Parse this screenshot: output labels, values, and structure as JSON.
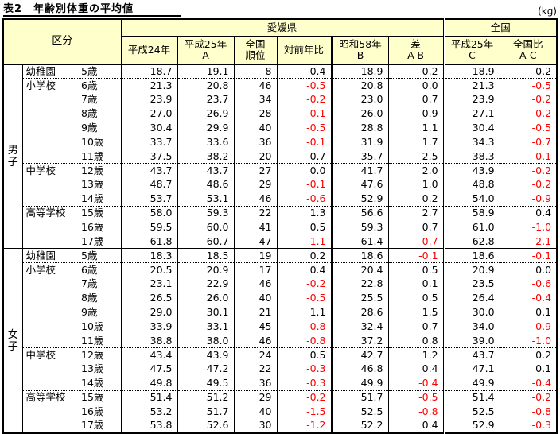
{
  "title": "表2　年齢別体重の平均値",
  "unit": "(kg)",
  "colors": {
    "header_bg": "#FFFFCC",
    "negative_value": "#FF0000",
    "border": "#000000"
  },
  "header": {
    "kubun": "区分",
    "ehime": "愛媛県",
    "zenkoku": "全国",
    "cols": [
      {
        "l1": "平成24年",
        "l2": ""
      },
      {
        "l1": "平成25年",
        "l2": "A"
      },
      {
        "l1": "全国",
        "l2": "順位"
      },
      {
        "l1": "対前年比",
        "l2": ""
      },
      {
        "l1": "昭和58年",
        "l2": "B"
      },
      {
        "l1": "差",
        "l2": "A-B"
      },
      {
        "l1": "平成25年",
        "l2": "C"
      },
      {
        "l1": "全国比",
        "l2": "A-C"
      }
    ]
  },
  "groups": [
    {
      "gender": "男子",
      "rows": [
        {
          "school": "幼稚園",
          "age": "5歳",
          "sep": false,
          "values": [
            "18.7",
            "19.1",
            "8",
            "0.4",
            "18.9",
            "0.2",
            "18.9",
            "0.2"
          ]
        },
        {
          "school": "小学校",
          "age": "6歳",
          "sep": true,
          "values": [
            "21.3",
            "20.8",
            "46",
            "-0.5",
            "20.8",
            "0.0",
            "21.3",
            "-0.5"
          ]
        },
        {
          "school": "",
          "age": "7歳",
          "sep": false,
          "values": [
            "23.9",
            "23.7",
            "34",
            "-0.2",
            "23.0",
            "0.7",
            "23.9",
            "-0.2"
          ]
        },
        {
          "school": "",
          "age": "8歳",
          "sep": false,
          "values": [
            "27.0",
            "26.9",
            "28",
            "-0.1",
            "26.0",
            "0.9",
            "27.1",
            "-0.2"
          ]
        },
        {
          "school": "",
          "age": "9歳",
          "sep": false,
          "values": [
            "30.4",
            "29.9",
            "40",
            "-0.5",
            "28.8",
            "1.1",
            "30.4",
            "-0.5"
          ]
        },
        {
          "school": "",
          "age": "10歳",
          "sep": false,
          "values": [
            "33.7",
            "33.6",
            "36",
            "-0.1",
            "31.9",
            "1.7",
            "34.3",
            "-0.7"
          ]
        },
        {
          "school": "",
          "age": "11歳",
          "sep": false,
          "values": [
            "37.5",
            "38.2",
            "20",
            "0.7",
            "35.7",
            "2.5",
            "38.3",
            "-0.1"
          ]
        },
        {
          "school": "中学校",
          "age": "12歳",
          "sep": true,
          "values": [
            "43.7",
            "43.7",
            "27",
            "0.0",
            "41.7",
            "2.0",
            "43.9",
            "-0.2"
          ]
        },
        {
          "school": "",
          "age": "13歳",
          "sep": false,
          "values": [
            "48.7",
            "48.6",
            "29",
            "-0.1",
            "47.6",
            "1.0",
            "48.8",
            "-0.2"
          ]
        },
        {
          "school": "",
          "age": "14歳",
          "sep": false,
          "values": [
            "53.7",
            "53.1",
            "46",
            "-0.6",
            "52.9",
            "0.2",
            "54.0",
            "-0.9"
          ]
        },
        {
          "school": "高等学校",
          "age": "15歳",
          "sep": true,
          "values": [
            "58.0",
            "59.3",
            "22",
            "1.3",
            "56.6",
            "2.7",
            "58.9",
            "0.4"
          ]
        },
        {
          "school": "",
          "age": "16歳",
          "sep": false,
          "values": [
            "59.5",
            "60.0",
            "41",
            "0.5",
            "59.3",
            "0.7",
            "61.0",
            "-1.0"
          ]
        },
        {
          "school": "",
          "age": "17歳",
          "sep": false,
          "values": [
            "61.8",
            "60.7",
            "47",
            "-1.1",
            "61.4",
            "-0.7",
            "62.8",
            "-2.1"
          ]
        }
      ]
    },
    {
      "gender": "女子",
      "rows": [
        {
          "school": "幼稚園",
          "age": "5歳",
          "sep": false,
          "values": [
            "18.3",
            "18.5",
            "19",
            "0.2",
            "18.6",
            "-0.1",
            "18.6",
            "-0.1"
          ]
        },
        {
          "school": "小学校",
          "age": "6歳",
          "sep": true,
          "values": [
            "20.5",
            "20.9",
            "17",
            "0.4",
            "20.4",
            "0.5",
            "20.9",
            "0.0"
          ]
        },
        {
          "school": "",
          "age": "7歳",
          "sep": false,
          "values": [
            "23.1",
            "22.9",
            "46",
            "-0.2",
            "22.8",
            "0.1",
            "23.5",
            "-0.6"
          ]
        },
        {
          "school": "",
          "age": "8歳",
          "sep": false,
          "values": [
            "26.5",
            "26.0",
            "40",
            "-0.5",
            "25.5",
            "0.5",
            "26.4",
            "-0.4"
          ]
        },
        {
          "school": "",
          "age": "9歳",
          "sep": false,
          "values": [
            "29.0",
            "30.1",
            "21",
            "1.1",
            "28.6",
            "1.5",
            "30.0",
            "0.1"
          ]
        },
        {
          "school": "",
          "age": "10歳",
          "sep": false,
          "values": [
            "33.9",
            "33.1",
            "45",
            "-0.8",
            "32.4",
            "0.7",
            "34.0",
            "-0.9"
          ]
        },
        {
          "school": "",
          "age": "11歳",
          "sep": false,
          "values": [
            "38.8",
            "38.0",
            "46",
            "-0.8",
            "37.2",
            "0.8",
            "39.0",
            "-1.0"
          ]
        },
        {
          "school": "中学校",
          "age": "12歳",
          "sep": true,
          "values": [
            "43.4",
            "43.9",
            "24",
            "0.5",
            "42.7",
            "1.2",
            "43.7",
            "0.2"
          ]
        },
        {
          "school": "",
          "age": "13歳",
          "sep": false,
          "values": [
            "47.5",
            "47.2",
            "22",
            "-0.3",
            "46.8",
            "0.4",
            "47.1",
            "0.1"
          ]
        },
        {
          "school": "",
          "age": "14歳",
          "sep": false,
          "values": [
            "49.8",
            "49.5",
            "36",
            "-0.3",
            "49.9",
            "-0.4",
            "49.9",
            "-0.4"
          ]
        },
        {
          "school": "高等学校",
          "age": "15歳",
          "sep": true,
          "values": [
            "51.4",
            "51.2",
            "29",
            "-0.2",
            "51.7",
            "-0.5",
            "51.4",
            "-0.2"
          ]
        },
        {
          "school": "",
          "age": "16歳",
          "sep": false,
          "values": [
            "53.2",
            "51.7",
            "40",
            "-1.5",
            "52.5",
            "-0.8",
            "52.5",
            "-0.8"
          ]
        },
        {
          "school": "",
          "age": "17歳",
          "sep": false,
          "values": [
            "53.8",
            "52.6",
            "30",
            "-1.2",
            "52.2",
            "0.4",
            "52.9",
            "-0.3"
          ]
        }
      ]
    }
  ]
}
